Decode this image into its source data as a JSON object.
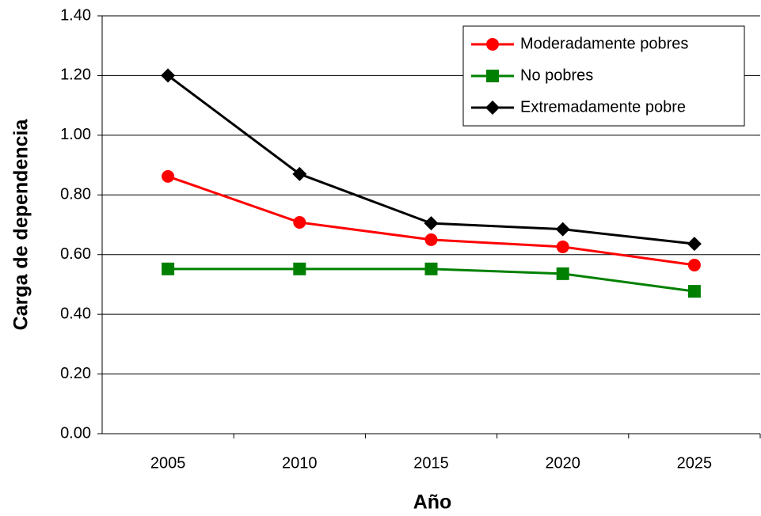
{
  "chart_data": {
    "type": "line",
    "x_label": "Año",
    "y_label": "Carga de dependencia",
    "categories": [
      "2005",
      "2010",
      "2015",
      "2020",
      "2025"
    ],
    "series": [
      {
        "name": "Moderadamente pobres",
        "color": "#ff0000",
        "marker": "circle",
        "values": [
          0.862,
          0.708,
          0.65,
          0.626,
          0.565
        ]
      },
      {
        "name": "No pobres",
        "color": "#008000",
        "marker": "square",
        "values": [
          0.552,
          0.552,
          0.552,
          0.536,
          0.477
        ]
      },
      {
        "name": "Extremadamente pobre",
        "color": "#000000",
        "marker": "diamond",
        "values": [
          1.2,
          0.87,
          0.705,
          0.685,
          0.636
        ]
      }
    ],
    "ylim": [
      0,
      1.4
    ],
    "yticks": [
      {
        "value": 0,
        "label": "0.00"
      },
      {
        "value": 0.2,
        "label": "0.20"
      },
      {
        "value": 0.4,
        "label": "0.40"
      },
      {
        "value": 0.6,
        "label": "0.60"
      },
      {
        "value": 0.8,
        "label": "0.80"
      },
      {
        "value": 1.0,
        "label": "1.00"
      },
      {
        "value": 1.2,
        "label": "1.20"
      },
      {
        "value": 1.4,
        "label": "1.40"
      }
    ],
    "grid": true,
    "legend": "top-right"
  }
}
